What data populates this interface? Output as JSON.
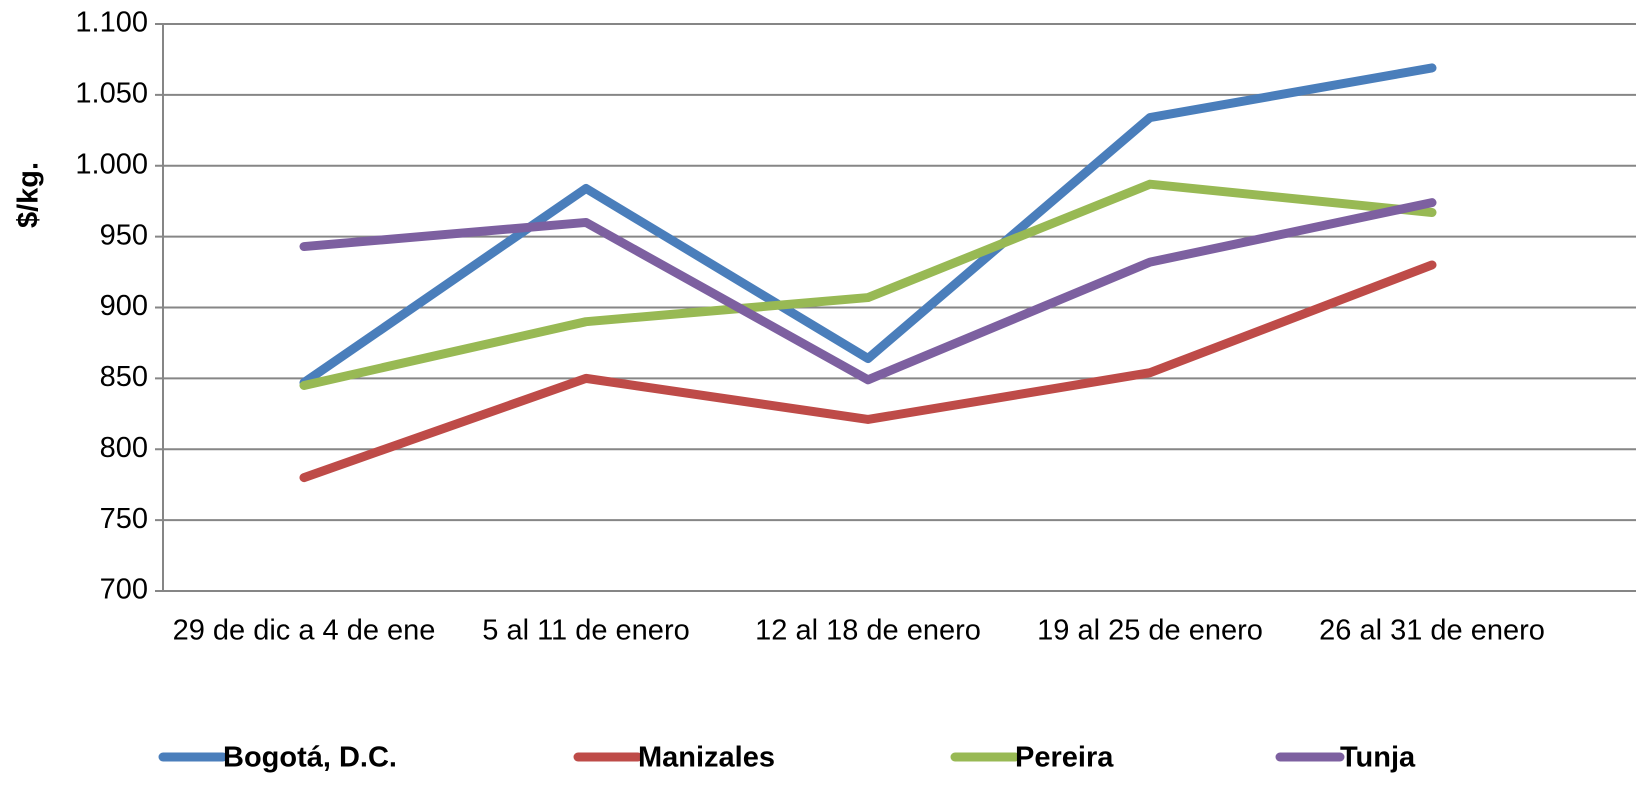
{
  "chart_data": {
    "type": "line",
    "y_label": "$/kg.",
    "categories": [
      "29 de dic a 4 de ene",
      "5 al 11 de enero",
      "12 al 18 de enero",
      "19 al 25 de enero",
      "26 al 31 de enero"
    ],
    "series": [
      {
        "name": "Bogotá, D.C.",
        "color": "#4a7ebb",
        "values": [
          847,
          984,
          864,
          1034,
          1069
        ]
      },
      {
        "name": "Manizales",
        "color": "#be4b48",
        "values": [
          780,
          850,
          821,
          854,
          930
        ]
      },
      {
        "name": "Pereira",
        "color": "#98b954",
        "values": [
          845,
          890,
          907,
          987,
          967
        ]
      },
      {
        "name": "Tunja",
        "color": "#7d60a0",
        "values": [
          943,
          960,
          849,
          932,
          974
        ]
      }
    ],
    "ylim": [
      700,
      1100
    ],
    "yticks": [
      700,
      750,
      800,
      850,
      900,
      950,
      {
        "value": 1000,
        "label": "1.000"
      },
      {
        "value": 1050,
        "label": "1.050"
      },
      {
        "value": 1100,
        "label": "1.100"
      }
    ],
    "grid": true,
    "legend": "bottom"
  }
}
